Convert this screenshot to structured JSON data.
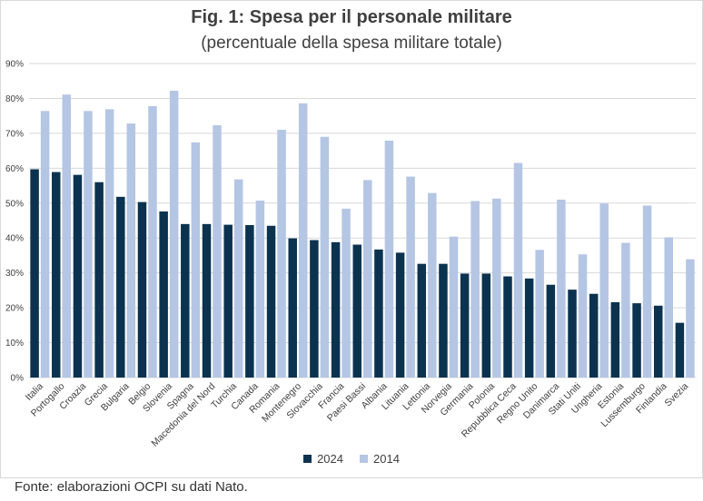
{
  "header": {
    "title": "Fig. 1: Spesa per il personale militare",
    "subtitle": "(percentuale della spesa militare totale)"
  },
  "footer": {
    "source": "Fonte: elaborazioni OCPI su dati Nato."
  },
  "colors": {
    "series_2024": "#0b3350",
    "series_2014": "#b4c6e4",
    "grid": "#d9d9d9"
  },
  "chart_data": {
    "type": "bar",
    "categories": [
      "Italia",
      "Portogallo",
      "Croazia",
      "Grecia",
      "Bulgaria",
      "Belgio",
      "Slovenia",
      "Spagna",
      "Macedonia del Nord",
      "Turchia",
      "Canada",
      "Romania",
      "Montenegro",
      "Slovacchia",
      "Francia",
      "Paesi Bassi",
      "Albania",
      "Lituania",
      "Lettonia",
      "Norvegia",
      "Germania",
      "Polonia",
      "Repubblica Ceca",
      "Regno Unito",
      "Danimarca",
      "Stati Uniti",
      "Ungheria",
      "Estonia",
      "Lussemburgo",
      "Finlandia",
      "Svezia"
    ],
    "series": [
      {
        "name": "2024",
        "values": [
          59.7,
          58.9,
          58.1,
          56.0,
          51.8,
          50.3,
          47.6,
          44.0,
          44.0,
          43.8,
          43.7,
          43.5,
          39.9,
          39.4,
          38.8,
          38.1,
          36.7,
          35.8,
          32.6,
          32.6,
          29.8,
          29.8,
          29.0,
          28.4,
          26.6,
          25.2,
          24.0,
          21.6,
          21.3,
          20.6,
          15.7
        ]
      },
      {
        "name": "2014",
        "values": [
          76.4,
          81.1,
          76.4,
          76.9,
          72.8,
          77.8,
          82.2,
          67.4,
          72.3,
          56.8,
          50.7,
          71.0,
          78.6,
          69.0,
          48.4,
          56.6,
          67.9,
          57.6,
          52.9,
          40.4,
          50.6,
          51.3,
          61.5,
          36.6,
          51.0,
          35.3,
          49.9,
          38.6,
          49.3,
          40.2,
          33.9
        ]
      }
    ],
    "yticks": [
      "0%",
      "10%",
      "20%",
      "30%",
      "40%",
      "50%",
      "60%",
      "70%",
      "80%",
      "90%"
    ],
    "ylim": [
      0,
      90
    ],
    "grid": true,
    "legend_position": "bottom-center"
  }
}
